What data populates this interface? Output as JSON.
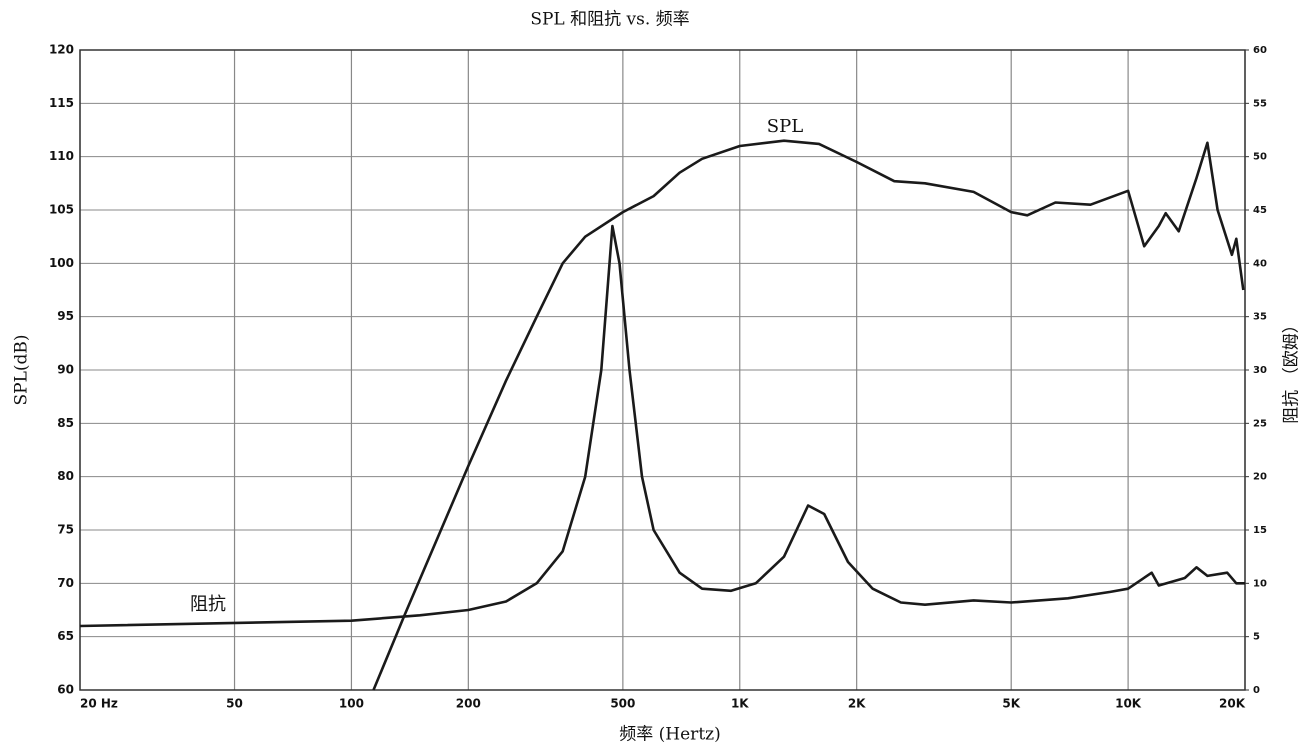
{
  "chart_data": {
    "type": "line",
    "title": "SPL 和阻抗 vs. 频率",
    "x_label": "频率 (Hertz)",
    "y_label": "SPL(dB)",
    "y2_label": "阻抗 （欧姆）",
    "x_scale": "log",
    "grid": true,
    "xlim": [
      20,
      20000
    ],
    "xticks": [
      {
        "value": 20,
        "label": "20 Hz"
      },
      50,
      100,
      200,
      500,
      {
        "value": 1000,
        "label": "1K"
      },
      {
        "value": 2000,
        "label": "2K"
      },
      {
        "value": 5000,
        "label": "5K"
      },
      {
        "value": 10000,
        "label": "10K"
      },
      {
        "value": 20000,
        "label": "20K"
      }
    ],
    "ylim": [
      60,
      120
    ],
    "yticks": [
      60,
      65,
      70,
      75,
      80,
      85,
      90,
      95,
      100,
      105,
      110,
      115,
      120
    ],
    "y2lim": [
      0,
      60
    ],
    "y2ticks": [
      0,
      5,
      10,
      15,
      20,
      25,
      30,
      35,
      40,
      45,
      50,
      55,
      60
    ],
    "annotations": [
      "SPL",
      "阻抗"
    ],
    "series": [
      {
        "name": "SPL",
        "color": "#1a1a1a",
        "x": [
          114,
          137,
          200,
          250,
          300,
          350,
          400,
          500,
          600,
          700,
          800,
          1000,
          1300,
          1600,
          2000,
          2500,
          3000,
          4000,
          5000,
          5500,
          6500,
          8000,
          10000,
          11000,
          12000,
          12500,
          13500,
          15000,
          16000,
          17000,
          18500,
          19000,
          19800
        ],
        "values": [
          60,
          67,
          81,
          89,
          95,
          100,
          102.5,
          104.8,
          106.3,
          108.5,
          109.8,
          111,
          111.5,
          111.2,
          109.5,
          107.7,
          107.5,
          106.7,
          104.8,
          104.5,
          105.7,
          105.5,
          106.8,
          101.6,
          103.5,
          104.7,
          103,
          108,
          111.3,
          105,
          100.8,
          102.3,
          97.5
        ]
      },
      {
        "name": "阻抗",
        "color": "#1a1a1a",
        "axis": "y2",
        "x": [
          20,
          100,
          150,
          200,
          250,
          300,
          350,
          400,
          440,
          470,
          490,
          520,
          560,
          600,
          700,
          800,
          950,
          1100,
          1300,
          1500,
          1650,
          1900,
          2200,
          2600,
          3000,
          4000,
          5000,
          7000,
          9000,
          10000,
          11500,
          12000,
          14000,
          15000,
          16000,
          18000,
          19000,
          20000
        ],
        "values": [
          6,
          6.5,
          7,
          7.5,
          8.3,
          10,
          13,
          20,
          30,
          43.5,
          40,
          30,
          20,
          15,
          11,
          9.5,
          9.3,
          10,
          12.5,
          17.3,
          16.5,
          12,
          9.5,
          8.2,
          8,
          8.4,
          8.2,
          8.6,
          9.2,
          9.5,
          11,
          9.8,
          10.5,
          11.5,
          10.7,
          11,
          10,
          10
        ]
      }
    ]
  }
}
